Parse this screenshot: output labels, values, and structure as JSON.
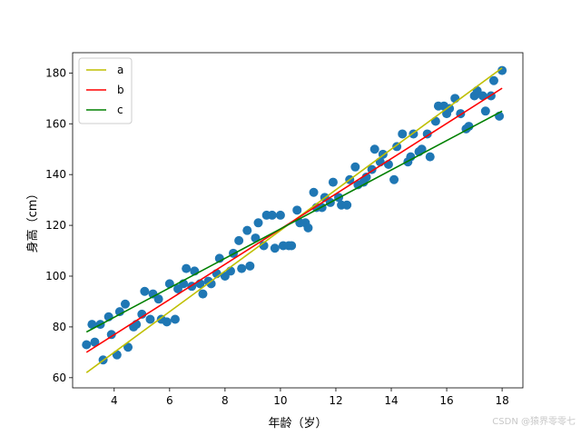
{
  "chart_data": {
    "type": "scatter",
    "xlabel": "年龄（岁）",
    "ylabel": "身高（cm）",
    "xlim": [
      2.5,
      18.75
    ],
    "ylim": [
      56,
      188
    ],
    "xticks": [
      4,
      6,
      8,
      10,
      12,
      14,
      16,
      18
    ],
    "yticks": [
      60,
      80,
      100,
      120,
      140,
      160,
      180
    ],
    "grid": false,
    "legend_placement": "top-left",
    "scatter_color": "#1f77b4",
    "points": [
      [
        3.0,
        73
      ],
      [
        3.2,
        81
      ],
      [
        3.3,
        74
      ],
      [
        3.5,
        81
      ],
      [
        3.6,
        67
      ],
      [
        3.8,
        84
      ],
      [
        3.9,
        77
      ],
      [
        4.1,
        69
      ],
      [
        4.2,
        86
      ],
      [
        4.4,
        89
      ],
      [
        4.5,
        72
      ],
      [
        4.7,
        80
      ],
      [
        4.8,
        81
      ],
      [
        5.0,
        85
      ],
      [
        5.1,
        94
      ],
      [
        5.3,
        83
      ],
      [
        5.4,
        93
      ],
      [
        5.6,
        91
      ],
      [
        5.7,
        83
      ],
      [
        5.9,
        82
      ],
      [
        6.0,
        97
      ],
      [
        6.2,
        83
      ],
      [
        6.3,
        95
      ],
      [
        6.5,
        97
      ],
      [
        6.6,
        103
      ],
      [
        6.8,
        96
      ],
      [
        6.9,
        102
      ],
      [
        7.1,
        97
      ],
      [
        7.2,
        93
      ],
      [
        7.4,
        98
      ],
      [
        7.5,
        97
      ],
      [
        7.7,
        101
      ],
      [
        7.8,
        107
      ],
      [
        8.0,
        100
      ],
      [
        8.2,
        102
      ],
      [
        8.3,
        109
      ],
      [
        8.5,
        114
      ],
      [
        8.6,
        103
      ],
      [
        8.8,
        118
      ],
      [
        8.9,
        104
      ],
      [
        9.1,
        115
      ],
      [
        9.2,
        121
      ],
      [
        9.4,
        112
      ],
      [
        9.5,
        124
      ],
      [
        9.7,
        124
      ],
      [
        9.8,
        111
      ],
      [
        10.0,
        124
      ],
      [
        10.1,
        112
      ],
      [
        10.3,
        112
      ],
      [
        10.4,
        112
      ],
      [
        10.6,
        126
      ],
      [
        10.7,
        121
      ],
      [
        10.9,
        121
      ],
      [
        11.0,
        119
      ],
      [
        11.2,
        133
      ],
      [
        11.3,
        127
      ],
      [
        11.5,
        127
      ],
      [
        11.6,
        131
      ],
      [
        11.8,
        129
      ],
      [
        11.9,
        137
      ],
      [
        12.1,
        131
      ],
      [
        12.2,
        128
      ],
      [
        12.4,
        128
      ],
      [
        12.5,
        138
      ],
      [
        12.7,
        143
      ],
      [
        12.8,
        136
      ],
      [
        13.0,
        137
      ],
      [
        13.1,
        139
      ],
      [
        13.3,
        142
      ],
      [
        13.4,
        150
      ],
      [
        13.6,
        145
      ],
      [
        13.7,
        148
      ],
      [
        13.9,
        144
      ],
      [
        14.1,
        138
      ],
      [
        14.2,
        151
      ],
      [
        14.4,
        156
      ],
      [
        14.6,
        145
      ],
      [
        14.7,
        147
      ],
      [
        14.8,
        156
      ],
      [
        15.0,
        149
      ],
      [
        15.1,
        150
      ],
      [
        15.3,
        156
      ],
      [
        15.4,
        147
      ],
      [
        15.6,
        161
      ],
      [
        15.7,
        167
      ],
      [
        15.9,
        167
      ],
      [
        16.0,
        164
      ],
      [
        16.1,
        166
      ],
      [
        16.3,
        170
      ],
      [
        16.5,
        164
      ],
      [
        16.7,
        158
      ],
      [
        16.8,
        159
      ],
      [
        17.0,
        171
      ],
      [
        17.1,
        173
      ],
      [
        17.3,
        171
      ],
      [
        17.4,
        165
      ],
      [
        17.6,
        171
      ],
      [
        17.7,
        177
      ],
      [
        17.9,
        163
      ],
      [
        18.0,
        181
      ]
    ],
    "series": [
      {
        "name": "a",
        "color": "#bfbf00",
        "x": [
          3,
          18
        ],
        "y": [
          62,
          182
        ]
      },
      {
        "name": "b",
        "color": "#ff0000",
        "x": [
          3,
          18
        ],
        "y": [
          70,
          174
        ]
      },
      {
        "name": "c",
        "color": "#008000",
        "x": [
          3,
          18
        ],
        "y": [
          78,
          165
        ]
      }
    ]
  },
  "watermark": "CSDN @猿界零零七"
}
